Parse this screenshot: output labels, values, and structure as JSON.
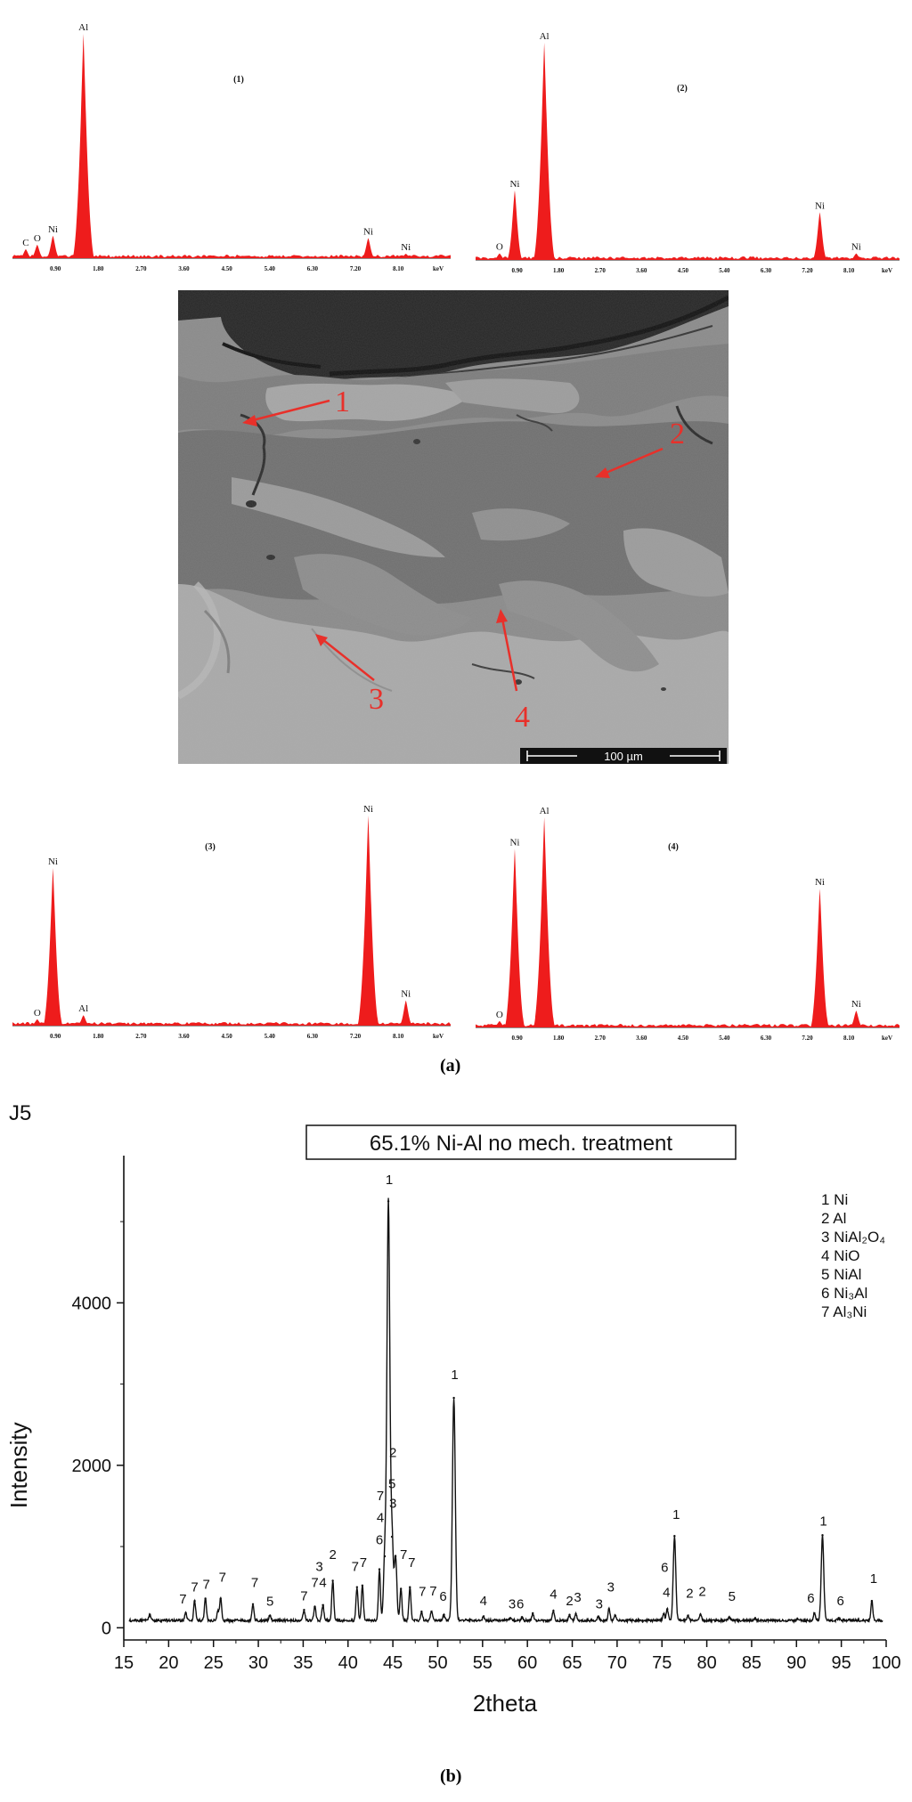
{
  "figure": {
    "caption_a": "(a)",
    "caption_b": "(b)",
    "sample_id": "J5"
  },
  "sem": {
    "scale_bar": "100 µm",
    "markers": [
      "1",
      "2",
      "3",
      "4"
    ],
    "colors": {
      "arrow": "#e8302a"
    }
  },
  "edx": {
    "color": "#ee1c1c",
    "ticks": [
      "0.90",
      "1.80",
      "2.70",
      "3.60",
      "4.50",
      "5.40",
      "6.30",
      "7.20",
      "8.10"
    ],
    "unit": "keV"
  },
  "chart_data": [
    {
      "type": "bar",
      "title": "(1)",
      "xlabel": "keV",
      "xlim": [
        0,
        9.2
      ],
      "ylim": [
        0,
        100
      ],
      "peaks": [
        {
          "element": "C",
          "x": 0.28,
          "y": 4
        },
        {
          "element": "O",
          "x": 0.52,
          "y": 6
        },
        {
          "element": "Ni",
          "x": 0.85,
          "y": 10
        },
        {
          "element": "Al",
          "x": 1.49,
          "y": 100
        },
        {
          "element": "Ni",
          "x": 7.47,
          "y": 9
        },
        {
          "element": "Ni",
          "x": 8.26,
          "y": 2
        }
      ]
    },
    {
      "type": "bar",
      "title": "(2)",
      "xlabel": "keV",
      "xlim": [
        0,
        9.2
      ],
      "ylim": [
        0,
        100
      ],
      "peaks": [
        {
          "element": "O",
          "x": 0.52,
          "y": 3
        },
        {
          "element": "Ni",
          "x": 0.85,
          "y": 32
        },
        {
          "element": "Al",
          "x": 1.49,
          "y": 100
        },
        {
          "element": "Ni",
          "x": 7.47,
          "y": 22
        },
        {
          "element": "Ni",
          "x": 8.26,
          "y": 3
        }
      ]
    },
    {
      "type": "bar",
      "title": "(3)",
      "xlabel": "keV",
      "xlim": [
        0,
        9.2
      ],
      "ylim": [
        0,
        100
      ],
      "peaks": [
        {
          "element": "O",
          "x": 0.52,
          "y": 3
        },
        {
          "element": "Ni",
          "x": 0.85,
          "y": 75
        },
        {
          "element": "Al",
          "x": 1.49,
          "y": 5
        },
        {
          "element": "Ni",
          "x": 7.47,
          "y": 100
        },
        {
          "element": "Ni",
          "x": 8.26,
          "y": 12
        }
      ]
    },
    {
      "type": "bar",
      "title": "(4)",
      "xlabel": "keV",
      "xlim": [
        0,
        9.2
      ],
      "ylim": [
        0,
        100
      ],
      "peaks": [
        {
          "element": "O",
          "x": 0.52,
          "y": 3
        },
        {
          "element": "Ni",
          "x": 0.85,
          "y": 85
        },
        {
          "element": "Al",
          "x": 1.49,
          "y": 100
        },
        {
          "element": "Ni",
          "x": 7.47,
          "y": 66
        },
        {
          "element": "Ni",
          "x": 8.26,
          "y": 8
        }
      ]
    },
    {
      "type": "line",
      "title": "65.1% Ni-Al no mech. treatment",
      "xlabel": "2theta",
      "ylabel": "Intensity",
      "xlim": [
        15,
        100
      ],
      "ylim": [
        -150,
        5900
      ],
      "xticks": [
        15,
        20,
        25,
        30,
        35,
        40,
        45,
        50,
        55,
        60,
        65,
        70,
        75,
        80,
        85,
        90,
        95,
        100
      ],
      "yticks": [
        0,
        2000,
        4000
      ],
      "baseline": 90,
      "legend": [
        "1 Ni",
        "2 Al",
        "3 NiAl₂O₄",
        "4 NiO",
        "5 NiAl",
        "6 Ni₃Al",
        "7 Al₃Ni"
      ],
      "peaks": [
        {
          "x": 17.9,
          "y": 160
        },
        {
          "x": 21.9,
          "y": 180
        },
        {
          "x": 22.9,
          "y": 330
        },
        {
          "x": 24.1,
          "y": 360
        },
        {
          "x": 25.5,
          "y": 200
        },
        {
          "x": 25.8,
          "y": 360
        },
        {
          "x": 29.4,
          "y": 290
        },
        {
          "x": 31.3,
          "y": 150
        },
        {
          "x": 35.1,
          "y": 220
        },
        {
          "x": 36.3,
          "y": 260
        },
        {
          "x": 37.2,
          "y": 280
        },
        {
          "x": 38.3,
          "y": 580
        },
        {
          "x": 41.0,
          "y": 500
        },
        {
          "x": 41.6,
          "y": 520
        },
        {
          "x": 43.5,
          "y": 720
        },
        {
          "x": 44.1,
          "y": 880
        },
        {
          "x": 44.5,
          "y": 5250
        },
        {
          "x": 44.9,
          "y": 1120
        },
        {
          "x": 45.3,
          "y": 880
        },
        {
          "x": 45.9,
          "y": 480
        },
        {
          "x": 46.9,
          "y": 500
        },
        {
          "x": 48.2,
          "y": 200
        },
        {
          "x": 49.3,
          "y": 200
        },
        {
          "x": 50.7,
          "y": 160
        },
        {
          "x": 51.8,
          "y": 2830
        },
        {
          "x": 55.1,
          "y": 140
        },
        {
          "x": 58.1,
          "y": 120
        },
        {
          "x": 59.4,
          "y": 130
        },
        {
          "x": 60.6,
          "y": 180
        },
        {
          "x": 62.9,
          "y": 210
        },
        {
          "x": 64.7,
          "y": 160
        },
        {
          "x": 65.4,
          "y": 170
        },
        {
          "x": 67.9,
          "y": 140
        },
        {
          "x": 69.1,
          "y": 230
        },
        {
          "x": 69.8,
          "y": 150
        },
        {
          "x": 75.2,
          "y": 170
        },
        {
          "x": 75.6,
          "y": 230
        },
        {
          "x": 76.4,
          "y": 1130
        },
        {
          "x": 77.9,
          "y": 150
        },
        {
          "x": 79.3,
          "y": 160
        },
        {
          "x": 82.5,
          "y": 130
        },
        {
          "x": 85.4,
          "y": 120
        },
        {
          "x": 90.1,
          "y": 110
        },
        {
          "x": 92.0,
          "y": 180
        },
        {
          "x": 92.9,
          "y": 1140
        },
        {
          "x": 94.7,
          "y": 120
        },
        {
          "x": 98.4,
          "y": 330
        }
      ],
      "annotations": [
        {
          "text": "7",
          "x": 21.6,
          "y": 300
        },
        {
          "text": "7",
          "x": 22.9,
          "y": 450
        },
        {
          "text": "7",
          "x": 24.2,
          "y": 480
        },
        {
          "text": "7",
          "x": 26.0,
          "y": 570
        },
        {
          "text": "7",
          "x": 29.6,
          "y": 500
        },
        {
          "text": "5",
          "x": 31.3,
          "y": 270
        },
        {
          "text": "7",
          "x": 35.1,
          "y": 340
        },
        {
          "text": "7",
          "x": 36.3,
          "y": 500
        },
        {
          "text": "3",
          "x": 36.8,
          "y": 700
        },
        {
          "text": "4",
          "x": 37.2,
          "y": 500
        },
        {
          "text": "2",
          "x": 38.3,
          "y": 850
        },
        {
          "text": "7",
          "x": 40.8,
          "y": 700
        },
        {
          "text": "7",
          "x": 41.7,
          "y": 750
        },
        {
          "text": "6",
          "x": 43.5,
          "y": 1030
        },
        {
          "text": "4",
          "x": 43.6,
          "y": 1300
        },
        {
          "text": "7",
          "x": 43.6,
          "y": 1570
        },
        {
          "text": "1",
          "x": 44.6,
          "y": 5460
        },
        {
          "text": "2",
          "x": 45.0,
          "y": 2100
        },
        {
          "text": "5",
          "x": 44.9,
          "y": 1720
        },
        {
          "text": "3",
          "x": 45.0,
          "y": 1480
        },
        {
          "text": "7",
          "x": 46.2,
          "y": 850
        },
        {
          "text": "7",
          "x": 47.1,
          "y": 750
        },
        {
          "text": "7",
          "x": 48.3,
          "y": 390
        },
        {
          "text": "7",
          "x": 49.5,
          "y": 400
        },
        {
          "text": "6",
          "x": 50.6,
          "y": 330
        },
        {
          "text": "1",
          "x": 51.9,
          "y": 3060
        },
        {
          "text": "4",
          "x": 55.1,
          "y": 280
        },
        {
          "text": "3",
          "x": 58.3,
          "y": 240
        },
        {
          "text": "6",
          "x": 59.2,
          "y": 240
        },
        {
          "text": "4",
          "x": 62.9,
          "y": 360
        },
        {
          "text": "2",
          "x": 64.7,
          "y": 280
        },
        {
          "text": "3",
          "x": 65.6,
          "y": 320
        },
        {
          "text": "3",
          "x": 68.0,
          "y": 240
        },
        {
          "text": "3",
          "x": 69.3,
          "y": 450
        },
        {
          "text": "6",
          "x": 75.3,
          "y": 690
        },
        {
          "text": "4",
          "x": 75.5,
          "y": 380
        },
        {
          "text": "1",
          "x": 76.6,
          "y": 1340
        },
        {
          "text": "2",
          "x": 78.1,
          "y": 370
        },
        {
          "text": "2",
          "x": 79.5,
          "y": 390
        },
        {
          "text": "5",
          "x": 82.8,
          "y": 330
        },
        {
          "text": "6",
          "x": 91.6,
          "y": 310
        },
        {
          "text": "1",
          "x": 93.0,
          "y": 1260
        },
        {
          "text": "6",
          "x": 94.9,
          "y": 280
        },
        {
          "text": "1",
          "x": 98.6,
          "y": 550
        }
      ]
    }
  ]
}
